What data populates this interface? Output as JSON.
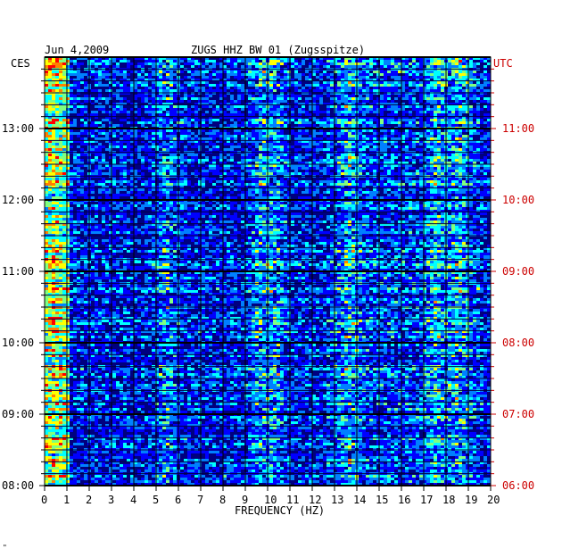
{
  "header": {
    "date": "Jun 4,2009",
    "station": "ZUGS HHZ BW 01 (Zugsspitze)",
    "left_zone": "CES",
    "right_zone": "UTC"
  },
  "footer_mark": "\"",
  "chart_data": {
    "type": "heatmap",
    "title": "ZUGS HHZ BW 01 (Zugsspitze)",
    "xlabel": "FREQUENCY (HZ)",
    "ylabel": "",
    "xlim": [
      0,
      20
    ],
    "x_ticks": [
      "0",
      "1",
      "2",
      "3",
      "4",
      "5",
      "6",
      "7",
      "8",
      "9",
      "10",
      "11",
      "12",
      "13",
      "14",
      "15",
      "16",
      "17",
      "18",
      "19",
      "20"
    ],
    "y_ticks_left": [
      "13:00",
      "12:00",
      "11:00",
      "10:00",
      "09:00",
      "08:00"
    ],
    "y_ticks_right": [
      "11:00",
      "10:00",
      "09:00",
      "08:00",
      "07:00",
      "06:00"
    ],
    "ylim_local": [
      "08:00",
      "13:50"
    ],
    "ylim_utc": [
      "06:00",
      "11:50"
    ],
    "colormap": [
      "#00007f",
      "#0000ff",
      "#0080ff",
      "#00ffff",
      "#80ff80",
      "#ffff00",
      "#ff8000",
      "#ff0000"
    ],
    "grid": true,
    "hot_bands_hz": [
      0.3,
      5.4,
      9.6,
      10.3,
      13.6,
      17.5,
      18.5
    ]
  }
}
